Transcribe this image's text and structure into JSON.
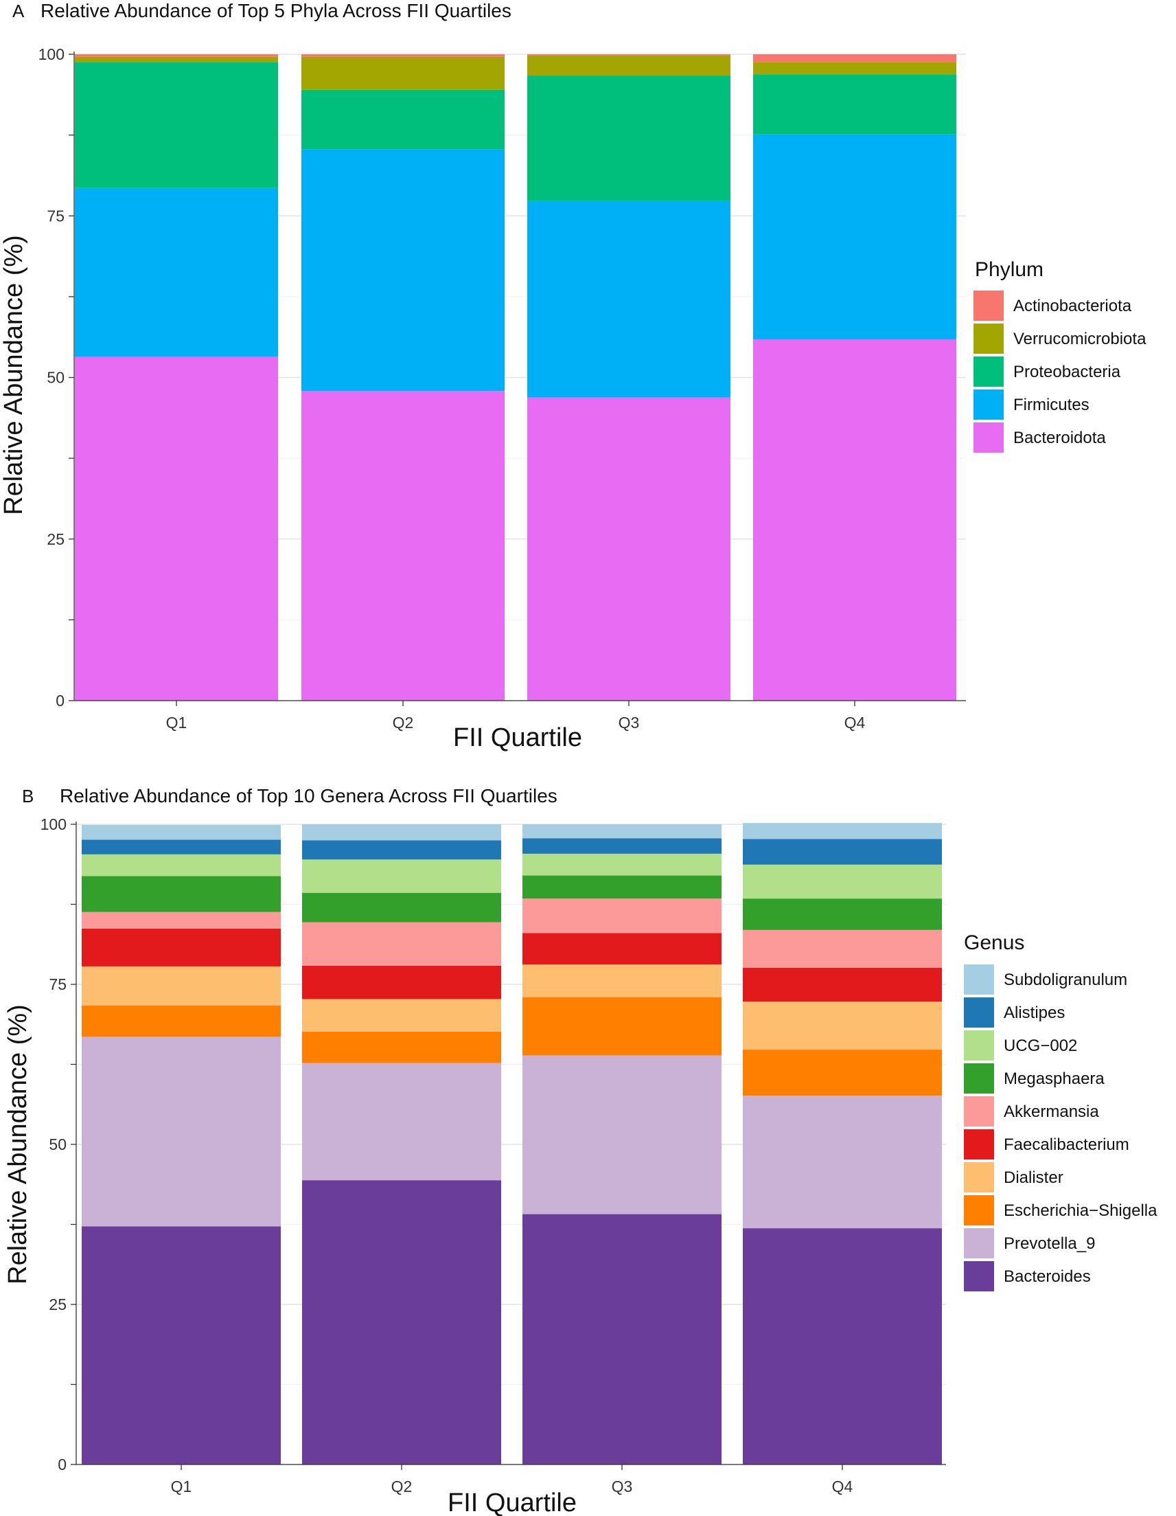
{
  "chart_data": [
    {
      "panel_label": "A",
      "type": "bar",
      "stacked": true,
      "title": "Relative Abundance of Top 5 Phyla Across FII Quartiles",
      "xlabel": "FII Quartile",
      "ylabel": "Relative Abundance (%)",
      "ylim": [
        0,
        100
      ],
      "yticks": [
        "0",
        "25",
        "50",
        "75",
        "100"
      ],
      "grid": true,
      "legend_title": "Phylum",
      "legend_position": "right",
      "categories": [
        "Q1",
        "Q2",
        "Q3",
        "Q4"
      ],
      "series": [
        {
          "name": "Bacteroidota",
          "color": "#E76BF3",
          "values": [
            53.2,
            47.9,
            46.9,
            55.9
          ]
        },
        {
          "name": "Firmicutes",
          "color": "#00B0F6",
          "values": [
            26.1,
            37.4,
            30.4,
            31.7
          ]
        },
        {
          "name": "Proteobacteria",
          "color": "#00BF7D",
          "values": [
            19.5,
            9.2,
            19.4,
            9.3
          ]
        },
        {
          "name": "Verrucomicrobiota",
          "color": "#A3A500",
          "values": [
            0.8,
            5.1,
            3.1,
            1.9
          ]
        },
        {
          "name": "Actinobacteriota",
          "color": "#F8766D",
          "values": [
            0.4,
            0.4,
            0.2,
            1.2
          ]
        }
      ]
    },
    {
      "panel_label": "B",
      "type": "bar",
      "stacked": true,
      "title": "Relative Abundance of Top 10 Genera Across FII Quartiles",
      "xlabel": "FII Quartile",
      "ylabel": "Relative Abundance (%)",
      "ylim": [
        0,
        100
      ],
      "yticks": [
        "0",
        "25",
        "50",
        "75",
        "100"
      ],
      "grid": true,
      "legend_title": "Genus",
      "legend_position": "right",
      "categories": [
        "Q1",
        "Q2",
        "Q3",
        "Q4"
      ],
      "series": [
        {
          "name": "Bacteroides",
          "color": "#6A3D9A",
          "values": [
            37.2,
            44.4,
            39.1,
            36.9
          ]
        },
        {
          "name": "Prevotella_9",
          "color": "#CAB2D6",
          "values": [
            29.6,
            18.3,
            24.8,
            20.7
          ]
        },
        {
          "name": "Escherichia−Shigella",
          "color": "#FF7F00",
          "values": [
            4.9,
            4.9,
            9.1,
            7.2
          ]
        },
        {
          "name": "Dialister",
          "color": "#FDBF6F",
          "values": [
            6.1,
            5.1,
            5.1,
            7.5
          ]
        },
        {
          "name": "Faecalibacterium",
          "color": "#E31A1C",
          "values": [
            5.9,
            5.2,
            4.9,
            5.3
          ]
        },
        {
          "name": "Akkermansia",
          "color": "#FB9A99",
          "values": [
            2.6,
            6.8,
            5.4,
            5.9
          ]
        },
        {
          "name": "Megasphaera",
          "color": "#33A02C",
          "values": [
            5.6,
            4.6,
            3.6,
            4.9
          ]
        },
        {
          "name": "UCG−002",
          "color": "#B2DF8A",
          "values": [
            3.4,
            5.2,
            3.4,
            5.3
          ]
        },
        {
          "name": "Alistipes",
          "color": "#1F78B4",
          "values": [
            2.3,
            3.0,
            2.4,
            4.0
          ]
        },
        {
          "name": "Subdoligranulum",
          "color": "#A6CEE3",
          "values": [
            2.3,
            2.5,
            2.2,
            2.5
          ]
        }
      ]
    }
  ]
}
